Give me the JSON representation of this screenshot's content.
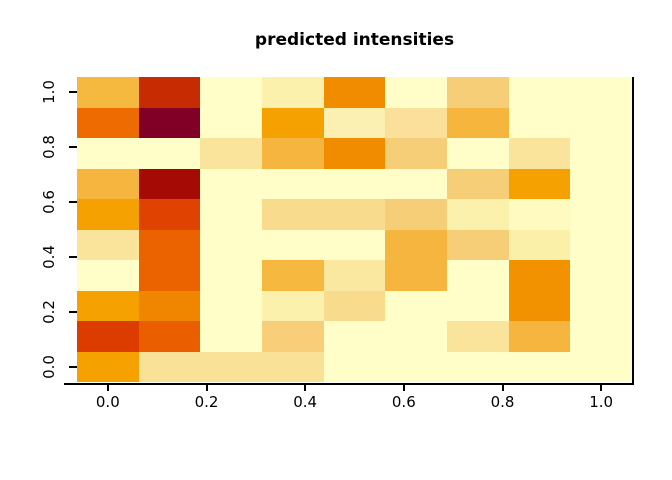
{
  "title": "predicted intensities",
  "chart_data": {
    "type": "heatmap",
    "title": "predicted intensities",
    "xlabel": "",
    "ylabel": "",
    "x_ticks": {
      "labels": [
        "0.0",
        "0.2",
        "0.4",
        "0.6",
        "0.8",
        "1.0"
      ],
      "values": [
        0,
        0.2,
        0.4,
        0.6,
        0.8,
        1.0
      ]
    },
    "y_ticks": {
      "labels": [
        "0.0",
        "0.2",
        "0.4",
        "0.6",
        "0.8",
        "1.0"
      ],
      "values": [
        0,
        0.2,
        0.4,
        0.6,
        0.8,
        1.0
      ]
    },
    "n_cols": 9,
    "n_rows": 10,
    "x_centers": [
      0,
      0.125,
      0.25,
      0.375,
      0.5,
      0.625,
      0.75,
      0.875,
      1.0
    ],
    "y_centers": [
      0,
      0.111,
      0.222,
      0.333,
      0.444,
      0.556,
      0.667,
      0.778,
      0.889,
      1.0
    ],
    "xlim": [
      -0.0625,
      1.0625
    ],
    "ylim": [
      -0.0556,
      1.0556
    ],
    "grid_on": false,
    "legend": "none",
    "colormap": "pale-yellow through orange to dark-red (YlOrRd-style ramp)",
    "background": "#FFFFFF",
    "axis_color": "#000000",
    "grid_colors_top_to_bottom": [
      [
        "#F6B93F",
        "#C62B02",
        "#FFFEC8",
        "#FCF1AC",
        "#F18C00",
        "#FFFEC8",
        "#F5CE77",
        "#FFFEC8",
        "#FFFEC8"
      ],
      [
        "#EE6B01",
        "#800026",
        "#FFFEC8",
        "#F5A101",
        "#FBF0B2",
        "#FAE09A",
        "#F6B63E",
        "#FFFEC8",
        "#FFFEC8"
      ],
      [
        "#FFFEC8",
        "#FFFEC8",
        "#FAE39A",
        "#F6B53F",
        "#F18C00",
        "#F5CE77",
        "#FFFEC8",
        "#FAE39A",
        "#FFFEC8"
      ],
      [
        "#F6B53F",
        "#A60A04",
        "#FFFEC8",
        "#FFFEC8",
        "#FFFEC8",
        "#FFFEC8",
        "#F5CE77",
        "#F5A101",
        "#FFFEC8"
      ],
      [
        "#F5A101",
        "#DF4201",
        "#FFFEC8",
        "#F8DB8C",
        "#F8DB8C",
        "#F5CE77",
        "#FCF1AC",
        "#FEFAC0",
        "#FFFEC8"
      ],
      [
        "#FAE39A",
        "#EB6301",
        "#FFFEC8",
        "#FFFEC8",
        "#FFFEC8",
        "#F5B53E",
        "#F5CE77",
        "#FAF0A8",
        "#FFFEC8"
      ],
      [
        "#FFFEC8",
        "#EB6301",
        "#FFFEC8",
        "#F6B83F",
        "#FAE7A0",
        "#F5B53E",
        "#FFFEC8",
        "#F29200",
        "#FFFEC8"
      ],
      [
        "#F5A101",
        "#F08600",
        "#FFFEC8",
        "#FCF1AC",
        "#F8DB8C",
        "#FFFEC8",
        "#FFFEC8",
        "#F29200",
        "#FFFEC8"
      ],
      [
        "#DC3C00",
        "#EA5E00",
        "#FFFEC8",
        "#F9CE79",
        "#FFFEC8",
        "#FFFEC8",
        "#FAE39A",
        "#F5B53E",
        "#FFFEC8"
      ],
      [
        "#F5A200",
        "#FAE198",
        "#FAE198",
        "#FAE198",
        "#FFFEC8",
        "#FFFEC8",
        "#FFFEC8",
        "#FFFEC8",
        "#FFFEC8"
      ]
    ]
  }
}
